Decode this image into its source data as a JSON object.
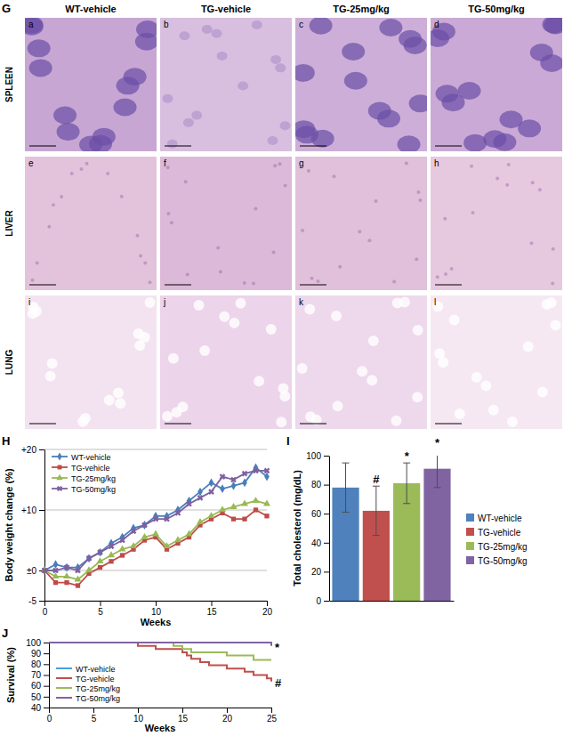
{
  "figure_g": {
    "label": "G",
    "columns": [
      "WT-vehicle",
      "TG-vehicle",
      "TG-25mg/kg",
      "TG-50mg/kg"
    ],
    "rows": [
      {
        "name": "SPLEEN",
        "panels": [
          "a",
          "b",
          "c",
          "d"
        ]
      },
      {
        "name": "LIVER",
        "panels": [
          "e",
          "f",
          "g",
          "h"
        ]
      },
      {
        "name": "LUNG",
        "panels": [
          "i",
          "j",
          "k",
          "l"
        ]
      }
    ]
  },
  "chart_data": [
    {
      "type": "line",
      "title": "H",
      "x_label": "Weeks",
      "y_label": "Body weight change (%)",
      "x": [
        0,
        1,
        2,
        3,
        4,
        5,
        6,
        7,
        8,
        9,
        10,
        11,
        12,
        13,
        14,
        15,
        16,
        17,
        18,
        19,
        20
      ],
      "xlim": [
        0,
        20
      ],
      "xticks": [
        0,
        5,
        10,
        15,
        20
      ],
      "ylim": [
        -5,
        20
      ],
      "yticks": [
        -5,
        {
          "value": 0,
          "label": "±0"
        },
        {
          "value": 10,
          "label": "+10"
        },
        {
          "value": 20,
          "label": "+20"
        }
      ],
      "grid": true,
      "legend": "upper left",
      "series": [
        {
          "name": "WT-vehicle",
          "color": "#4a7ebb",
          "marker": "diamond",
          "values": [
            0,
            1,
            0.5,
            0.5,
            2,
            3,
            4.5,
            5.5,
            7,
            7.5,
            9,
            9,
            10,
            11.5,
            13,
            14.5,
            13.5,
            14,
            14.5,
            17,
            15.5
          ]
        },
        {
          "name": "TG-vehicle",
          "color": "#be4b48",
          "marker": "square",
          "values": [
            0,
            -2,
            -2,
            -2.5,
            -0.5,
            0.5,
            1.5,
            2.5,
            3.5,
            5,
            5.5,
            3.5,
            4.5,
            5.5,
            7.5,
            8.5,
            9.5,
            8.5,
            8.5,
            10,
            9
          ]
        },
        {
          "name": "TG-25mg/kg",
          "color": "#98b954",
          "marker": "triangle",
          "values": [
            0,
            -1,
            -1,
            -1.5,
            0,
            1.5,
            2.5,
            3.5,
            4,
            5.5,
            6,
            4,
            5,
            6,
            8,
            9,
            10,
            10.5,
            11,
            11.5,
            11
          ]
        },
        {
          "name": "TG-50mg/kg",
          "color": "#7d60a0",
          "marker": "x",
          "values": [
            0,
            0,
            0.5,
            0,
            2,
            3,
            4,
            5,
            6.5,
            7.5,
            8.5,
            8.5,
            9.5,
            11,
            12,
            13,
            15.5,
            15,
            16,
            16.5,
            16.5
          ]
        }
      ]
    },
    {
      "type": "bar",
      "title": "I",
      "y_label": "Total cholesterol (mg/dL)",
      "categories": [
        "WT-vehicle",
        "TG-vehicle",
        "TG-25mg/kg",
        "TG-50mg/kg"
      ],
      "values": [
        78,
        62,
        81,
        91
      ],
      "errors": [
        17,
        17,
        14,
        13
      ],
      "significance": [
        null,
        "#",
        "*",
        "*"
      ],
      "colors": [
        "#4f81bd",
        "#c0504d",
        "#9bbb59",
        "#8064a2"
      ],
      "ylim": [
        0,
        100
      ],
      "yticks": [
        0,
        20,
        40,
        60,
        80,
        100
      ],
      "grid": false,
      "legend": "right",
      "tick_labels": "y"
    },
    {
      "type": "line",
      "title": "J",
      "x_label": "Weeks",
      "y_label": "Survival (%)",
      "xlim": [
        0,
        25
      ],
      "xticks": [
        0,
        5,
        10,
        15,
        20,
        25
      ],
      "ylim": [
        40,
        100
      ],
      "yticks": [
        40,
        50,
        60,
        70,
        80,
        90,
        100
      ],
      "grid": false,
      "legend": "lower left",
      "line_style": "step",
      "annotations": [
        {
          "text": "*",
          "x": 25.4,
          "y": 96
        },
        {
          "text": "#",
          "x": 25.4,
          "y": 63
        }
      ],
      "series": [
        {
          "name": "WT-vehicle",
          "color": "#4a9fd8",
          "x": [
            0,
            25
          ],
          "values": [
            100,
            100
          ]
        },
        {
          "name": "TG-vehicle",
          "color": "#c0504d",
          "x": [
            0,
            10,
            12,
            15,
            15.5,
            16,
            17,
            18,
            20,
            22,
            23,
            24.5,
            25
          ],
          "values": [
            100,
            97,
            94,
            91,
            88,
            85,
            82,
            79,
            76,
            73,
            70,
            67,
            64
          ]
        },
        {
          "name": "TG-25mg/kg",
          "color": "#9bbb59",
          "x": [
            0,
            14,
            15,
            16,
            20,
            23,
            25
          ],
          "values": [
            100,
            97,
            94,
            91,
            88,
            84,
            84
          ]
        },
        {
          "name": "TG-50mg/kg",
          "color": "#8064a2",
          "x": [
            0,
            24.5,
            25
          ],
          "values": [
            100,
            100,
            97
          ]
        }
      ]
    }
  ]
}
